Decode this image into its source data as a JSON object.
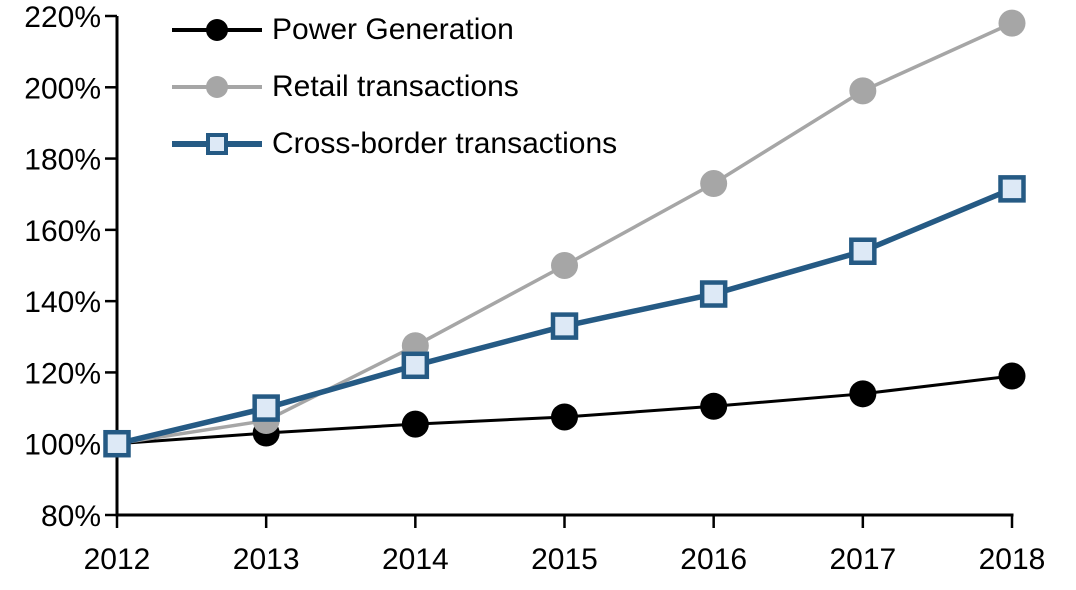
{
  "page": {
    "background": "#ffffff"
  },
  "chart_data": {
    "type": "line",
    "title": "",
    "xlabel": "",
    "ylabel": "",
    "x": [
      "2012",
      "2013",
      "2014",
      "2015",
      "2016",
      "2017",
      "2018"
    ],
    "ylim": [
      80,
      220
    ],
    "ytick_step": 20,
    "ytick_suffix": "%",
    "grid": false,
    "legend_position": "top-left",
    "axis_color": "#000000",
    "series": [
      {
        "name": "Power Generation",
        "color": "#000000",
        "marker": "circle",
        "marker_fill": "#000000",
        "line_width": 3,
        "values": [
          100,
          103,
          105.5,
          107.5,
          110.5,
          114,
          119
        ]
      },
      {
        "name": "Retail transactions",
        "color": "#a6a6a6",
        "marker": "circle",
        "marker_fill": "#a6a6a6",
        "line_width": 3.5,
        "values": [
          100,
          106.5,
          127.5,
          150,
          173,
          199,
          218
        ]
      },
      {
        "name": "Cross-border transactions",
        "color": "#255a84",
        "marker": "square",
        "marker_fill": "#dde9f6",
        "line_width": 5.5,
        "values": [
          100,
          110,
          122,
          133,
          142,
          154,
          171.5
        ]
      }
    ]
  }
}
